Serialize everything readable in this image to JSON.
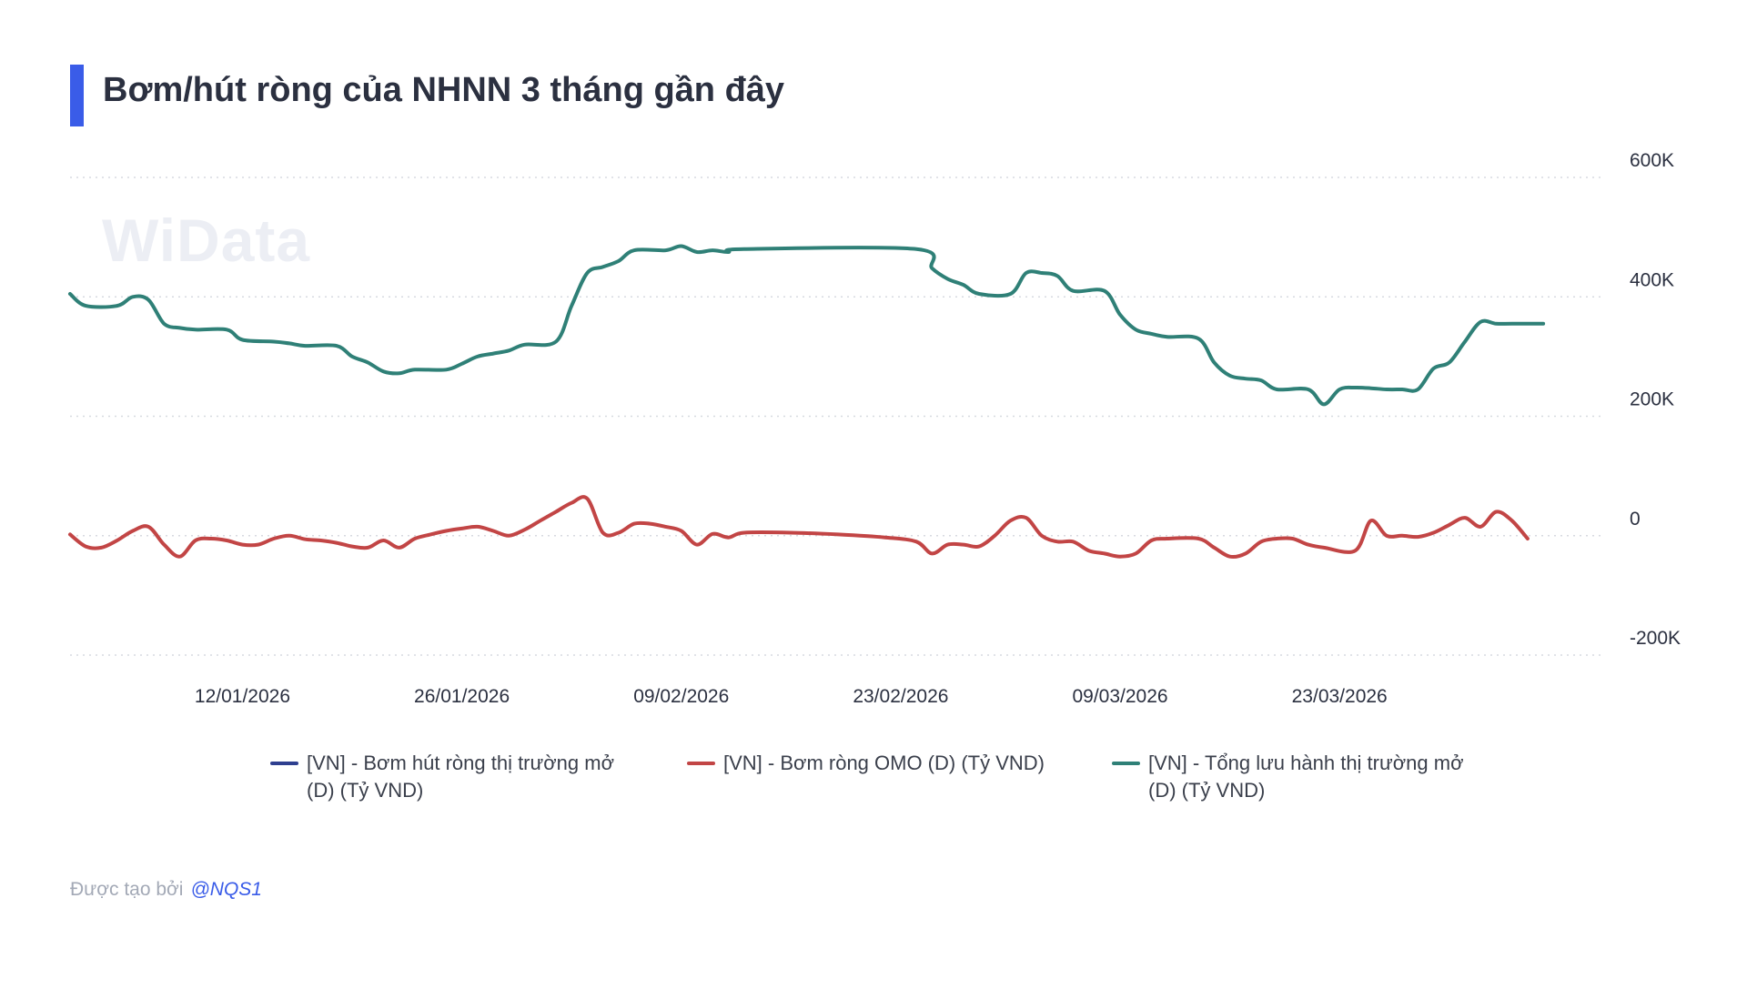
{
  "title": "Bơm/hút ròng của NHNN 3 tháng gần đây",
  "watermark": "WiData",
  "footer": {
    "created_by": "Được tạo bởi",
    "handle": "@NQS1"
  },
  "chart_data": {
    "type": "line",
    "title": "Bơm/hút ròng của NHNN 3 tháng gần đây",
    "xlabel": "",
    "ylabel": "",
    "x_range": [
      "2026-01-01",
      "2026-04-09"
    ],
    "ylim": [
      -200000,
      600000
    ],
    "y_ticks": [
      -200000,
      0,
      200000,
      400000,
      600000
    ],
    "y_tick_labels": [
      "-200K",
      "0",
      "200K",
      "400K",
      "600K"
    ],
    "x_tick_dates": [
      "2026-01-12",
      "2026-01-26",
      "2026-02-09",
      "2026-02-23",
      "2026-03-09",
      "2026-03-23"
    ],
    "x_tick_labels": [
      "12/01/2026",
      "26/01/2026",
      "09/02/2026",
      "23/02/2026",
      "09/03/2026",
      "23/03/2026"
    ],
    "grid": true,
    "legend_position": "bottom",
    "series": [
      {
        "name": "[VN] - Bơm hút ròng thị trường mở (D) (Tỷ VND)",
        "color": "#2e3f8f",
        "points": []
      },
      {
        "name": "[VN] - Bơm ròng OMO (D) (Tỷ VND)",
        "color": "#c24545",
        "points": [
          [
            "2026-01-01",
            2000
          ],
          [
            "2026-01-02",
            -18000
          ],
          [
            "2026-01-03",
            -20000
          ],
          [
            "2026-01-04",
            -8000
          ],
          [
            "2026-01-05",
            8000
          ],
          [
            "2026-01-06",
            15000
          ],
          [
            "2026-01-07",
            -15000
          ],
          [
            "2026-01-08",
            -35000
          ],
          [
            "2026-01-09",
            -8000
          ],
          [
            "2026-01-10",
            -5000
          ],
          [
            "2026-01-11",
            -8000
          ],
          [
            "2026-01-12",
            -15000
          ],
          [
            "2026-01-13",
            -15000
          ],
          [
            "2026-01-14",
            -5000
          ],
          [
            "2026-01-15",
            0
          ],
          [
            "2026-01-16",
            -6000
          ],
          [
            "2026-01-17",
            -8000
          ],
          [
            "2026-01-18",
            -12000
          ],
          [
            "2026-01-19",
            -18000
          ],
          [
            "2026-01-20",
            -20000
          ],
          [
            "2026-01-21",
            -8000
          ],
          [
            "2026-01-22",
            -20000
          ],
          [
            "2026-01-23",
            -5000
          ],
          [
            "2026-01-24",
            2000
          ],
          [
            "2026-01-25",
            8000
          ],
          [
            "2026-01-26",
            12000
          ],
          [
            "2026-01-27",
            15000
          ],
          [
            "2026-01-28",
            8000
          ],
          [
            "2026-01-29",
            0
          ],
          [
            "2026-01-30",
            10000
          ],
          [
            "2026-01-31",
            25000
          ],
          [
            "2026-02-01",
            40000
          ],
          [
            "2026-02-02",
            55000
          ],
          [
            "2026-02-03",
            62000
          ],
          [
            "2026-02-04",
            5000
          ],
          [
            "2026-02-05",
            5000
          ],
          [
            "2026-02-06",
            20000
          ],
          [
            "2026-02-07",
            20000
          ],
          [
            "2026-02-08",
            15000
          ],
          [
            "2026-02-09",
            8000
          ],
          [
            "2026-02-10",
            -15000
          ],
          [
            "2026-02-11",
            3000
          ],
          [
            "2026-02-12",
            -3000
          ],
          [
            "2026-02-13",
            5000
          ],
          [
            "2026-02-16",
            5000
          ],
          [
            "2026-02-19",
            2000
          ],
          [
            "2026-02-22",
            -3000
          ],
          [
            "2026-02-24",
            -10000
          ],
          [
            "2026-02-25",
            -30000
          ],
          [
            "2026-02-26",
            -15000
          ],
          [
            "2026-02-27",
            -15000
          ],
          [
            "2026-02-28",
            -18000
          ],
          [
            "2026-03-01",
            0
          ],
          [
            "2026-03-02",
            25000
          ],
          [
            "2026-03-03",
            30000
          ],
          [
            "2026-03-04",
            0
          ],
          [
            "2026-03-05",
            -10000
          ],
          [
            "2026-03-06",
            -10000
          ],
          [
            "2026-03-07",
            -25000
          ],
          [
            "2026-03-08",
            -30000
          ],
          [
            "2026-03-09",
            -35000
          ],
          [
            "2026-03-10",
            -30000
          ],
          [
            "2026-03-11",
            -8000
          ],
          [
            "2026-03-12",
            -5000
          ],
          [
            "2026-03-14",
            -5000
          ],
          [
            "2026-03-15",
            -20000
          ],
          [
            "2026-03-16",
            -35000
          ],
          [
            "2026-03-17",
            -30000
          ],
          [
            "2026-03-18",
            -10000
          ],
          [
            "2026-03-19",
            -5000
          ],
          [
            "2026-03-20",
            -5000
          ],
          [
            "2026-03-21",
            -15000
          ],
          [
            "2026-03-22",
            -20000
          ],
          [
            "2026-03-24",
            -25000
          ],
          [
            "2026-03-25",
            25000
          ],
          [
            "2026-03-26",
            0
          ],
          [
            "2026-03-27",
            0
          ],
          [
            "2026-03-28",
            -2000
          ],
          [
            "2026-03-29",
            5000
          ],
          [
            "2026-03-30",
            18000
          ],
          [
            "2026-03-31",
            30000
          ],
          [
            "2026-04-01",
            15000
          ],
          [
            "2026-04-02",
            40000
          ],
          [
            "2026-04-03",
            25000
          ],
          [
            "2026-04-04",
            -5000
          ]
        ]
      },
      {
        "name": "[VN] - Tổng lưu hành thị trường mở (D) (Tỷ VND)",
        "color": "#2f8077",
        "points": [
          [
            "2026-01-01",
            405000
          ],
          [
            "2026-01-02",
            385000
          ],
          [
            "2026-01-04",
            385000
          ],
          [
            "2026-01-05",
            400000
          ],
          [
            "2026-01-06",
            395000
          ],
          [
            "2026-01-07",
            355000
          ],
          [
            "2026-01-08",
            348000
          ],
          [
            "2026-01-09",
            345000
          ],
          [
            "2026-01-11",
            345000
          ],
          [
            "2026-01-12",
            328000
          ],
          [
            "2026-01-14",
            325000
          ],
          [
            "2026-01-15",
            322000
          ],
          [
            "2026-01-16",
            318000
          ],
          [
            "2026-01-18",
            318000
          ],
          [
            "2026-01-19",
            300000
          ],
          [
            "2026-01-20",
            290000
          ],
          [
            "2026-01-21",
            275000
          ],
          [
            "2026-01-22",
            272000
          ],
          [
            "2026-01-23",
            278000
          ],
          [
            "2026-01-25",
            278000
          ],
          [
            "2026-01-26",
            288000
          ],
          [
            "2026-01-27",
            300000
          ],
          [
            "2026-01-28",
            305000
          ],
          [
            "2026-01-29",
            310000
          ],
          [
            "2026-01-30",
            320000
          ],
          [
            "2026-02-01",
            325000
          ],
          [
            "2026-02-02",
            385000
          ],
          [
            "2026-02-03",
            440000
          ],
          [
            "2026-02-04",
            450000
          ],
          [
            "2026-02-05",
            460000
          ],
          [
            "2026-02-06",
            478000
          ],
          [
            "2026-02-08",
            478000
          ],
          [
            "2026-02-09",
            485000
          ],
          [
            "2026-02-10",
            475000
          ],
          [
            "2026-02-11",
            478000
          ],
          [
            "2026-02-12",
            475000
          ],
          [
            "2026-02-13",
            480000
          ],
          [
            "2026-02-24",
            480000
          ],
          [
            "2026-02-25",
            448000
          ],
          [
            "2026-02-26",
            430000
          ],
          [
            "2026-02-27",
            420000
          ],
          [
            "2026-02-28",
            405000
          ],
          [
            "2026-03-02",
            405000
          ],
          [
            "2026-03-03",
            440000
          ],
          [
            "2026-03-04",
            440000
          ],
          [
            "2026-03-05",
            435000
          ],
          [
            "2026-03-06",
            410000
          ],
          [
            "2026-03-08",
            410000
          ],
          [
            "2026-03-09",
            370000
          ],
          [
            "2026-03-10",
            345000
          ],
          [
            "2026-03-11",
            338000
          ],
          [
            "2026-03-12",
            333000
          ],
          [
            "2026-03-14",
            330000
          ],
          [
            "2026-03-15",
            290000
          ],
          [
            "2026-03-16",
            268000
          ],
          [
            "2026-03-17",
            263000
          ],
          [
            "2026-03-18",
            260000
          ],
          [
            "2026-03-19",
            245000
          ],
          [
            "2026-03-21",
            245000
          ],
          [
            "2026-03-22",
            220000
          ],
          [
            "2026-03-23",
            245000
          ],
          [
            "2026-03-24",
            248000
          ],
          [
            "2026-03-25",
            247000
          ],
          [
            "2026-03-26",
            245000
          ],
          [
            "2026-03-27",
            245000
          ],
          [
            "2026-03-28",
            245000
          ],
          [
            "2026-03-29",
            280000
          ],
          [
            "2026-03-30",
            290000
          ],
          [
            "2026-03-31",
            325000
          ],
          [
            "2026-04-01",
            358000
          ],
          [
            "2026-04-02",
            355000
          ],
          [
            "2026-04-03",
            355000
          ],
          [
            "2026-04-05",
            355000
          ]
        ]
      }
    ]
  }
}
